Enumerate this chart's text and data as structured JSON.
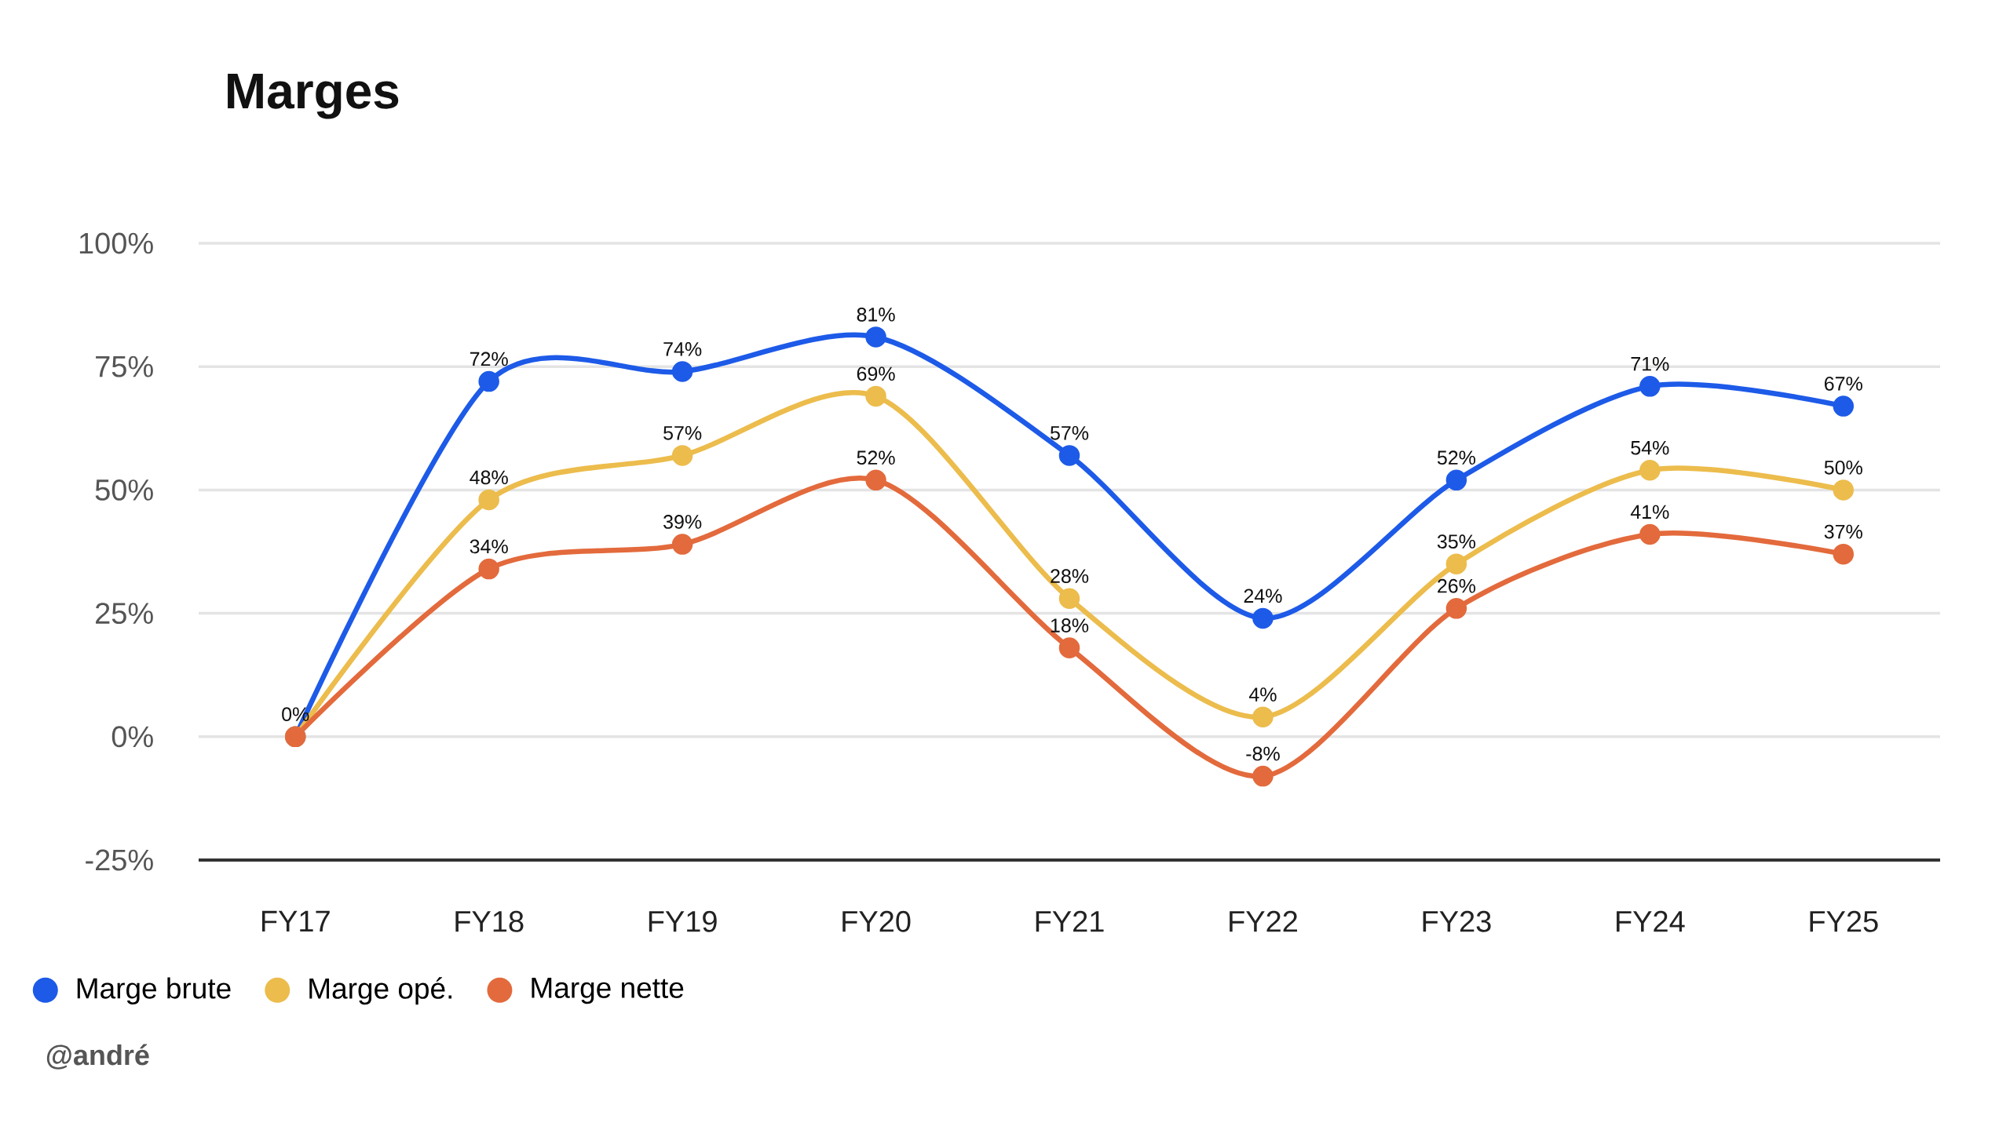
{
  "chart_data": {
    "type": "line",
    "title": "Marges",
    "categories": [
      "FY17",
      "FY18",
      "FY19",
      "FY20",
      "FY21",
      "FY22",
      "FY23",
      "FY24",
      "FY25"
    ],
    "series": [
      {
        "name": "Marge brute",
        "color": "#1d5ae8",
        "values": [
          0,
          72,
          74,
          81,
          57,
          24,
          52,
          71,
          67
        ],
        "value_labels": [
          "0%",
          "72%",
          "74%",
          "81%",
          "57%",
          "24%",
          "52%",
          "71%",
          "67%"
        ]
      },
      {
        "name": "Marge opé.",
        "color": "#ecbc4c",
        "values": [
          0,
          48,
          57,
          69,
          28,
          4,
          35,
          54,
          50
        ],
        "value_labels": [
          null,
          "48%",
          "57%",
          "69%",
          "28%",
          "4%",
          "35%",
          "54%",
          "50%"
        ]
      },
      {
        "name": "Marge nette",
        "color": "#e36a3c",
        "values": [
          0,
          34,
          39,
          52,
          18,
          -8,
          26,
          41,
          37
        ],
        "value_labels": [
          null,
          "34%",
          "39%",
          "52%",
          "18%",
          "-8%",
          "26%",
          "41%",
          "37%"
        ]
      }
    ],
    "ylim": [
      -25,
      100
    ],
    "yticks": [
      {
        "value": -25,
        "label": "-25%"
      },
      {
        "value": 0,
        "label": "0%"
      },
      {
        "value": 25,
        "label": "25%"
      },
      {
        "value": 50,
        "label": "50%"
      },
      {
        "value": 75,
        "label": "75%"
      },
      {
        "value": 100,
        "label": "100%"
      }
    ],
    "grid": "y",
    "legend": "bottom left",
    "marker": "circle",
    "line_style": "solid",
    "annotations": [
      "@andré"
    ]
  }
}
